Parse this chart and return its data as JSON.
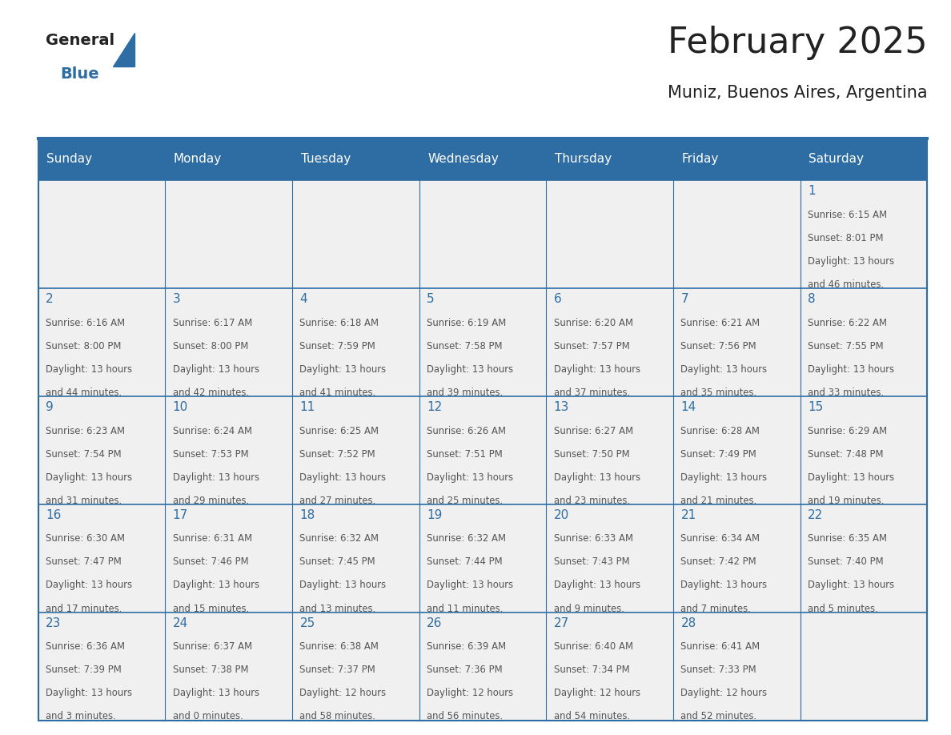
{
  "title": "February 2025",
  "subtitle": "Muniz, Buenos Aires, Argentina",
  "days_of_week": [
    "Sunday",
    "Monday",
    "Tuesday",
    "Wednesday",
    "Thursday",
    "Friday",
    "Saturday"
  ],
  "header_bg": "#2E6DA4",
  "header_text_color": "#FFFFFF",
  "cell_bg_light": "#F0F0F0",
  "border_color": "#2E6DA4",
  "day_num_color": "#2E6DA4",
  "text_color": "#555555",
  "title_color": "#222222",
  "logo_general_color": "#222222",
  "logo_blue_color": "#2E6DA4",
  "calendar_data": [
    [
      null,
      null,
      null,
      null,
      null,
      null,
      {
        "day": 1,
        "sunrise": "6:15 AM",
        "sunset": "8:01 PM",
        "daylight": "13 hours and 46 minutes."
      }
    ],
    [
      {
        "day": 2,
        "sunrise": "6:16 AM",
        "sunset": "8:00 PM",
        "daylight": "13 hours and 44 minutes."
      },
      {
        "day": 3,
        "sunrise": "6:17 AM",
        "sunset": "8:00 PM",
        "daylight": "13 hours and 42 minutes."
      },
      {
        "day": 4,
        "sunrise": "6:18 AM",
        "sunset": "7:59 PM",
        "daylight": "13 hours and 41 minutes."
      },
      {
        "day": 5,
        "sunrise": "6:19 AM",
        "sunset": "7:58 PM",
        "daylight": "13 hours and 39 minutes."
      },
      {
        "day": 6,
        "sunrise": "6:20 AM",
        "sunset": "7:57 PM",
        "daylight": "13 hours and 37 minutes."
      },
      {
        "day": 7,
        "sunrise": "6:21 AM",
        "sunset": "7:56 PM",
        "daylight": "13 hours and 35 minutes."
      },
      {
        "day": 8,
        "sunrise": "6:22 AM",
        "sunset": "7:55 PM",
        "daylight": "13 hours and 33 minutes."
      }
    ],
    [
      {
        "day": 9,
        "sunrise": "6:23 AM",
        "sunset": "7:54 PM",
        "daylight": "13 hours and 31 minutes."
      },
      {
        "day": 10,
        "sunrise": "6:24 AM",
        "sunset": "7:53 PM",
        "daylight": "13 hours and 29 minutes."
      },
      {
        "day": 11,
        "sunrise": "6:25 AM",
        "sunset": "7:52 PM",
        "daylight": "13 hours and 27 minutes."
      },
      {
        "day": 12,
        "sunrise": "6:26 AM",
        "sunset": "7:51 PM",
        "daylight": "13 hours and 25 minutes."
      },
      {
        "day": 13,
        "sunrise": "6:27 AM",
        "sunset": "7:50 PM",
        "daylight": "13 hours and 23 minutes."
      },
      {
        "day": 14,
        "sunrise": "6:28 AM",
        "sunset": "7:49 PM",
        "daylight": "13 hours and 21 minutes."
      },
      {
        "day": 15,
        "sunrise": "6:29 AM",
        "sunset": "7:48 PM",
        "daylight": "13 hours and 19 minutes."
      }
    ],
    [
      {
        "day": 16,
        "sunrise": "6:30 AM",
        "sunset": "7:47 PM",
        "daylight": "13 hours and 17 minutes."
      },
      {
        "day": 17,
        "sunrise": "6:31 AM",
        "sunset": "7:46 PM",
        "daylight": "13 hours and 15 minutes."
      },
      {
        "day": 18,
        "sunrise": "6:32 AM",
        "sunset": "7:45 PM",
        "daylight": "13 hours and 13 minutes."
      },
      {
        "day": 19,
        "sunrise": "6:32 AM",
        "sunset": "7:44 PM",
        "daylight": "13 hours and 11 minutes."
      },
      {
        "day": 20,
        "sunrise": "6:33 AM",
        "sunset": "7:43 PM",
        "daylight": "13 hours and 9 minutes."
      },
      {
        "day": 21,
        "sunrise": "6:34 AM",
        "sunset": "7:42 PM",
        "daylight": "13 hours and 7 minutes."
      },
      {
        "day": 22,
        "sunrise": "6:35 AM",
        "sunset": "7:40 PM",
        "daylight": "13 hours and 5 minutes."
      }
    ],
    [
      {
        "day": 23,
        "sunrise": "6:36 AM",
        "sunset": "7:39 PM",
        "daylight": "13 hours and 3 minutes."
      },
      {
        "day": 24,
        "sunrise": "6:37 AM",
        "sunset": "7:38 PM",
        "daylight": "13 hours and 0 minutes."
      },
      {
        "day": 25,
        "sunrise": "6:38 AM",
        "sunset": "7:37 PM",
        "daylight": "12 hours and 58 minutes."
      },
      {
        "day": 26,
        "sunrise": "6:39 AM",
        "sunset": "7:36 PM",
        "daylight": "12 hours and 56 minutes."
      },
      {
        "day": 27,
        "sunrise": "6:40 AM",
        "sunset": "7:34 PM",
        "daylight": "12 hours and 54 minutes."
      },
      {
        "day": 28,
        "sunrise": "6:41 AM",
        "sunset": "7:33 PM",
        "daylight": "12 hours and 52 minutes."
      },
      null
    ]
  ]
}
